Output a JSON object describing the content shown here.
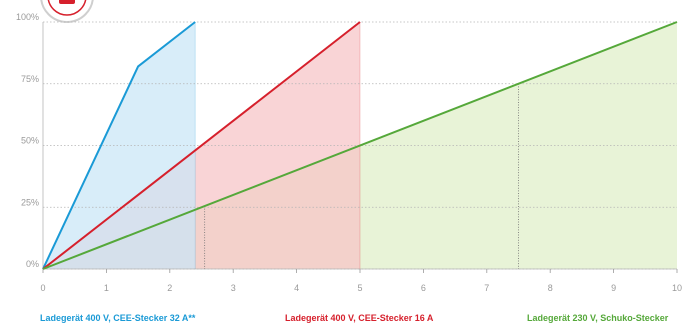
{
  "chart_data": {
    "type": "area",
    "title": "",
    "xlabel": "",
    "ylabel": "",
    "xlim": [
      0,
      10
    ],
    "ylim": [
      0,
      100
    ],
    "x_ticks": [
      0,
      1,
      2,
      3,
      4,
      5,
      6,
      7,
      8,
      9,
      10
    ],
    "y_ticks": [
      {
        "value": 0,
        "label": "0%"
      },
      {
        "value": 25,
        "label": "25%"
      },
      {
        "value": 50,
        "label": "50%"
      },
      {
        "value": 75,
        "label": "75%"
      },
      {
        "value": 100,
        "label": "100%"
      }
    ],
    "grid": "horizontal-dotted",
    "series": [
      {
        "name": "Ladegerät 400 V, CEE-Stecker 32 A**",
        "color": "#1a9ad6",
        "fill": "#c9e6f6",
        "x": [
          0,
          1.5,
          2.4
        ],
        "y": [
          0,
          82,
          100
        ]
      },
      {
        "name": "Ladegerät 400 V, CEE-Stecker 16 A",
        "color": "#d6202c",
        "fill": "#f6c3c6",
        "x": [
          0,
          5
        ],
        "y": [
          0,
          100
        ]
      },
      {
        "name": "Ladegerät 230 V, Schuko-Stecker",
        "color": "#55a83a",
        "fill": "#dfeec8",
        "x": [
          0,
          10
        ],
        "y": [
          0,
          100
        ]
      }
    ],
    "reference_markers": [
      {
        "x": 2.55,
        "y": 25.5
      },
      {
        "x": 7.5,
        "y": 75
      }
    ]
  },
  "icon": {
    "name": "plug-badge-icon",
    "color": "#d6202c"
  }
}
